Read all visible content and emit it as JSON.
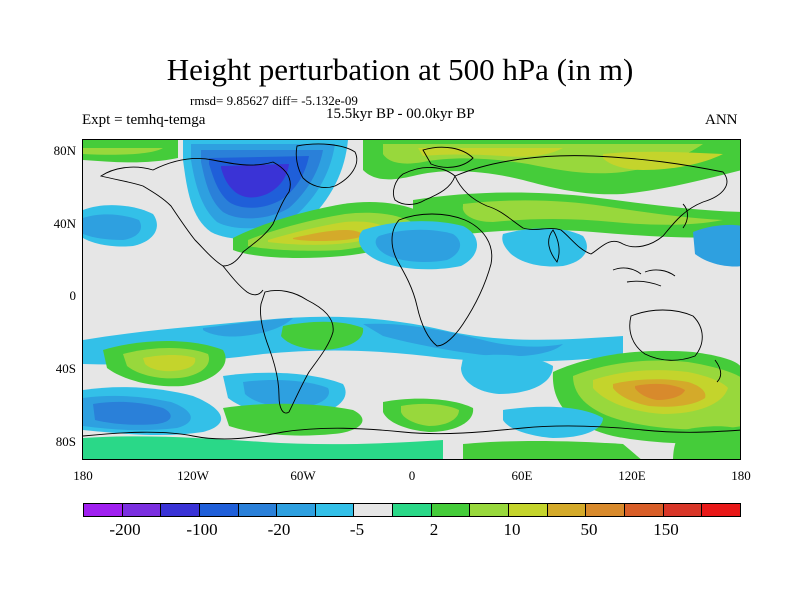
{
  "title": "Height perturbation at 500 hPa (in m)",
  "stats": "rmsd= 9.85627 diff= -5.132e-09",
  "left_label": "Expt = temhq-temga",
  "center_label": "15.5kyr BP - 00.0kyr BP",
  "right_label": "ANN",
  "lat_ticks": [
    "80N",
    "40N",
    "0",
    "40S",
    "80S"
  ],
  "lon_ticks": [
    "180",
    "120W",
    "60W",
    "0",
    "60E",
    "120E",
    "180"
  ],
  "colorbar": {
    "colors": [
      "#a020f0",
      "#7b2fe0",
      "#3a33d6",
      "#1f5fd9",
      "#2a80d9",
      "#2ea0e0",
      "#33c0e8",
      "#e6e6e6",
      "#2ad888",
      "#45cc3a",
      "#98d83c",
      "#c4d42c",
      "#d4aa2a",
      "#d88a2c",
      "#d85e28",
      "#d83628",
      "#e81818"
    ],
    "labels": [
      "-200",
      "-100",
      "-20",
      "-5",
      "2",
      "10",
      "50",
      "150"
    ]
  }
}
